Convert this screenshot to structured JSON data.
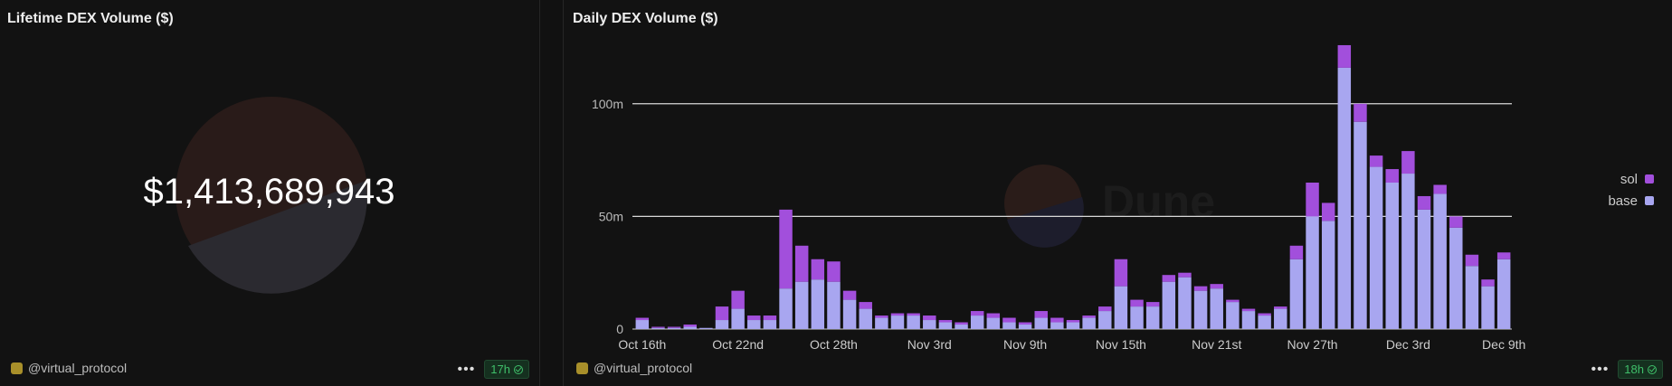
{
  "left_panel": {
    "title": "Lifetime DEX Volume ($)",
    "value": "$1,413,689,943",
    "author": "@virtual_protocol",
    "age": "17h"
  },
  "right_panel": {
    "title": "Daily DEX Volume ($)",
    "author": "@virtual_protocol",
    "age": "18h"
  },
  "colors": {
    "sol": "#a24fdc",
    "base": "#a8a6f0",
    "background": "#121212",
    "accent_green": "#3fbf6a"
  },
  "chart_data": {
    "type": "bar",
    "stacked": true,
    "categories": [
      "Oct 16th",
      "Oct 17th",
      "Oct 18th",
      "Oct 19th",
      "Oct 20th",
      "Oct 21st",
      "Oct 22nd",
      "Oct 23rd",
      "Oct 24th",
      "Oct 25th",
      "Oct 26th",
      "Oct 27th",
      "Oct 28th",
      "Oct 29th",
      "Oct 30th",
      "Oct 31st",
      "Nov 1st",
      "Nov 2nd",
      "Nov 3rd",
      "Nov 4th",
      "Nov 5th",
      "Nov 6th",
      "Nov 7th",
      "Nov 8th",
      "Nov 9th",
      "Nov 10th",
      "Nov 11th",
      "Nov 12th",
      "Nov 13th",
      "Nov 14th",
      "Nov 15th",
      "Nov 16th",
      "Nov 17th",
      "Nov 18th",
      "Nov 19th",
      "Nov 20th",
      "Nov 21st",
      "Nov 22nd",
      "Nov 23rd",
      "Nov 24th",
      "Nov 25th",
      "Nov 26th",
      "Nov 27th",
      "Nov 28th",
      "Nov 29th",
      "Nov 30th",
      "Dec 1st",
      "Dec 2nd",
      "Dec 3rd",
      "Dec 4th",
      "Dec 5th",
      "Dec 6th",
      "Dec 7th",
      "Dec 8th",
      "Dec 9th"
    ],
    "tick_labels": [
      "Oct 16th",
      "Oct 22nd",
      "Oct 28th",
      "Nov 3rd",
      "Nov 9th",
      "Nov 15th",
      "Nov 21st",
      "Nov 27th",
      "Dec 3rd",
      "Dec 9th"
    ],
    "series": [
      {
        "name": "base",
        "values": [
          4,
          0.5,
          0.5,
          1,
          0.5,
          4,
          9,
          4,
          4,
          18,
          21,
          22,
          21,
          13,
          9,
          5,
          6,
          6,
          4,
          3,
          2,
          6,
          5,
          3,
          2,
          5,
          3,
          3,
          5,
          8,
          19,
          10,
          10,
          21,
          23,
          17,
          18,
          12,
          8,
          6,
          9,
          31,
          50,
          48,
          116,
          92,
          72,
          65,
          69,
          53,
          60,
          45,
          28,
          19,
          31
        ]
      },
      {
        "name": "sol",
        "values": [
          1,
          0.5,
          0.5,
          1,
          0,
          6,
          8,
          2,
          2,
          35,
          16,
          9,
          9,
          4,
          3,
          1,
          1,
          1,
          2,
          1,
          1,
          2,
          2,
          2,
          1,
          3,
          2,
          1,
          1,
          2,
          12,
          3,
          2,
          3,
          2,
          2,
          2,
          1,
          1,
          1,
          1,
          6,
          15,
          8,
          10,
          8,
          5,
          6,
          10,
          6,
          4,
          5,
          5,
          3,
          3
        ]
      }
    ],
    "ylim": [
      0,
      130
    ],
    "yticks": [
      0,
      50,
      100
    ],
    "ytick_labels": [
      "0",
      "50m",
      "100m"
    ],
    "grid": true,
    "legend_position": "right"
  }
}
